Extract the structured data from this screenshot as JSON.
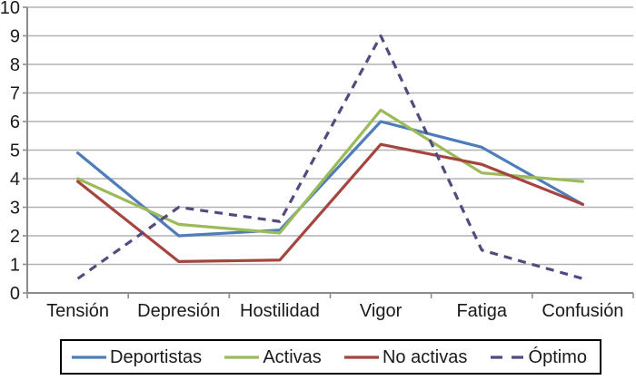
{
  "chart_data": {
    "type": "line",
    "title": "",
    "xlabel": "",
    "ylabel": "",
    "categories": [
      "Tensión",
      "Depresión",
      "Hostilidad",
      "Vigor",
      "Fatiga",
      "Confusión"
    ],
    "series": [
      {
        "name": "Deportistas",
        "color": "#4E7DBA",
        "dashed": false,
        "values": [
          4.9,
          2.0,
          2.2,
          6.0,
          5.1,
          3.1
        ]
      },
      {
        "name": "Activas",
        "color": "#9BBB59",
        "dashed": false,
        "values": [
          4.0,
          2.4,
          2.1,
          6.4,
          4.2,
          3.9
        ]
      },
      {
        "name": "No activas",
        "color": "#A5453F",
        "dashed": false,
        "values": [
          3.9,
          1.1,
          1.15,
          5.2,
          4.5,
          3.1
        ]
      },
      {
        "name": "Óptimo",
        "color": "#554A7E",
        "dashed": true,
        "values": [
          0.5,
          3.0,
          2.5,
          9.0,
          1.5,
          0.5
        ]
      }
    ],
    "ylim": [
      0,
      10
    ],
    "ytick_step": 1,
    "grid": true,
    "legend_position": "bottom-box"
  },
  "colors": {
    "gridline": "#b2b2b2",
    "axis": "#8c8c8c",
    "text": "#1a1a1a",
    "legend_border": "#000000",
    "background": "#ffffff"
  }
}
